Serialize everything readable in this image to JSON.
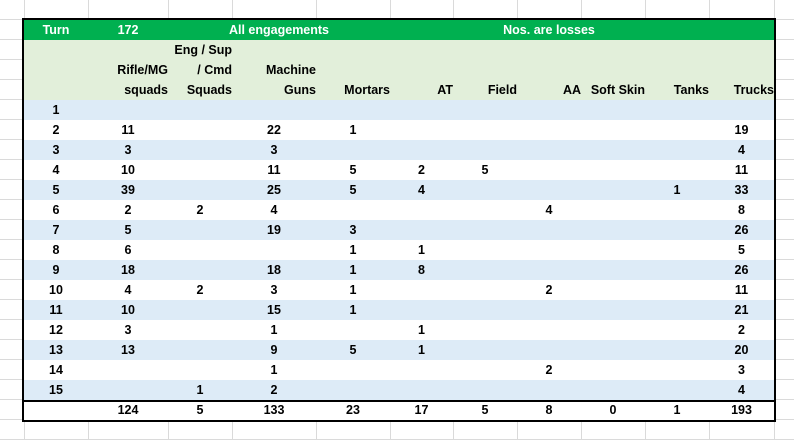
{
  "banner": {
    "turn_label": "Turn",
    "turn": 172,
    "scope": "All engagements",
    "note": "Nos. are losses"
  },
  "table": {
    "columns": [
      [
        "Rifle/MG",
        "squads"
      ],
      [
        "Eng / Sup",
        "/ Cmd",
        "Squads"
      ],
      [
        "Machine",
        "Guns"
      ],
      [
        "Mortars"
      ],
      [
        "AT"
      ],
      [
        "Field"
      ],
      [
        "AA"
      ],
      [
        "Soft Skin"
      ],
      [
        "Tanks"
      ],
      [
        "Trucks"
      ]
    ],
    "rows": [
      [
        1,
        null,
        null,
        null,
        null,
        null,
        null,
        null,
        null,
        null,
        null
      ],
      [
        2,
        11,
        null,
        22,
        1,
        null,
        null,
        null,
        null,
        null,
        19
      ],
      [
        3,
        3,
        null,
        3,
        null,
        null,
        null,
        null,
        null,
        null,
        4
      ],
      [
        4,
        10,
        null,
        11,
        5,
        2,
        5,
        null,
        null,
        null,
        11
      ],
      [
        5,
        39,
        null,
        25,
        5,
        4,
        null,
        null,
        null,
        1,
        33
      ],
      [
        6,
        2,
        2,
        4,
        null,
        null,
        null,
        4,
        null,
        null,
        8
      ],
      [
        7,
        5,
        null,
        19,
        3,
        null,
        null,
        null,
        null,
        null,
        26
      ],
      [
        8,
        6,
        null,
        null,
        1,
        1,
        null,
        null,
        null,
        null,
        5
      ],
      [
        9,
        18,
        null,
        18,
        1,
        8,
        null,
        null,
        null,
        null,
        26
      ],
      [
        10,
        4,
        2,
        3,
        1,
        null,
        null,
        2,
        null,
        null,
        11
      ],
      [
        11,
        10,
        null,
        15,
        1,
        null,
        null,
        null,
        null,
        null,
        21
      ],
      [
        12,
        3,
        null,
        1,
        null,
        1,
        null,
        null,
        null,
        null,
        2
      ],
      [
        13,
        13,
        null,
        9,
        5,
        1,
        null,
        null,
        null,
        null,
        20
      ],
      [
        14,
        null,
        null,
        1,
        null,
        null,
        null,
        2,
        null,
        null,
        3
      ],
      [
        15,
        null,
        1,
        2,
        null,
        null,
        null,
        null,
        null,
        null,
        4
      ]
    ],
    "totals": [
      124,
      5,
      133,
      23,
      17,
      5,
      8,
      0,
      1,
      193
    ]
  }
}
